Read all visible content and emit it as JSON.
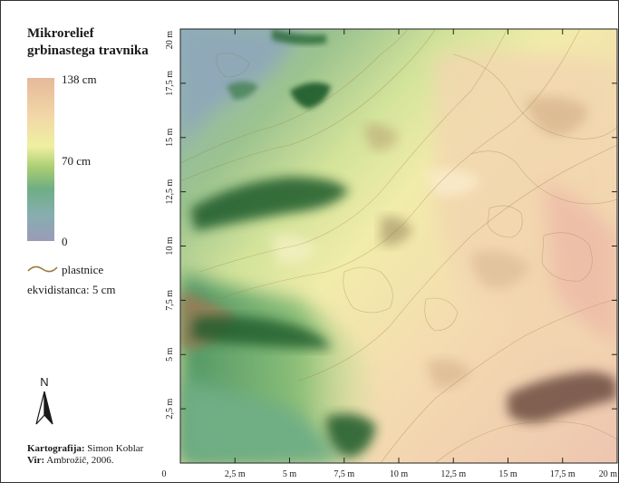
{
  "title_line1": "Mikrorelief",
  "title_line2": "grbinastega travnika",
  "legend": {
    "max_label": "138 cm",
    "mid_label": "70 cm",
    "min_label": "0",
    "contour_label": "plastnice",
    "equidistance": "ekvidistanca: 5 cm",
    "contour_color": "#9a7a3c"
  },
  "north_label": "N",
  "credits": {
    "cartography_label": "Kartografija:",
    "cartography_name": "Simon Koblar",
    "source_label": "Vir:",
    "source_name": "Ambrožič, 2006."
  },
  "x_ticks": [
    "0",
    "2,5 m",
    "5 m",
    "7,5 m",
    "10 m",
    "12,5 m",
    "15 m",
    "17,5 m",
    "20 m"
  ],
  "y_ticks": [
    "2,5 m",
    "5 m",
    "7,5 m",
    "10 m",
    "12,5 m",
    "15 m",
    "17,5 m",
    "20 m"
  ],
  "colors": {
    "high": "#e6b99a",
    "mid_high": "#f2e7a6",
    "mid": "#a9cd72",
    "mid_low": "#6fae84",
    "low": "#9b9bb8",
    "shadow": "#1e5a2c"
  }
}
